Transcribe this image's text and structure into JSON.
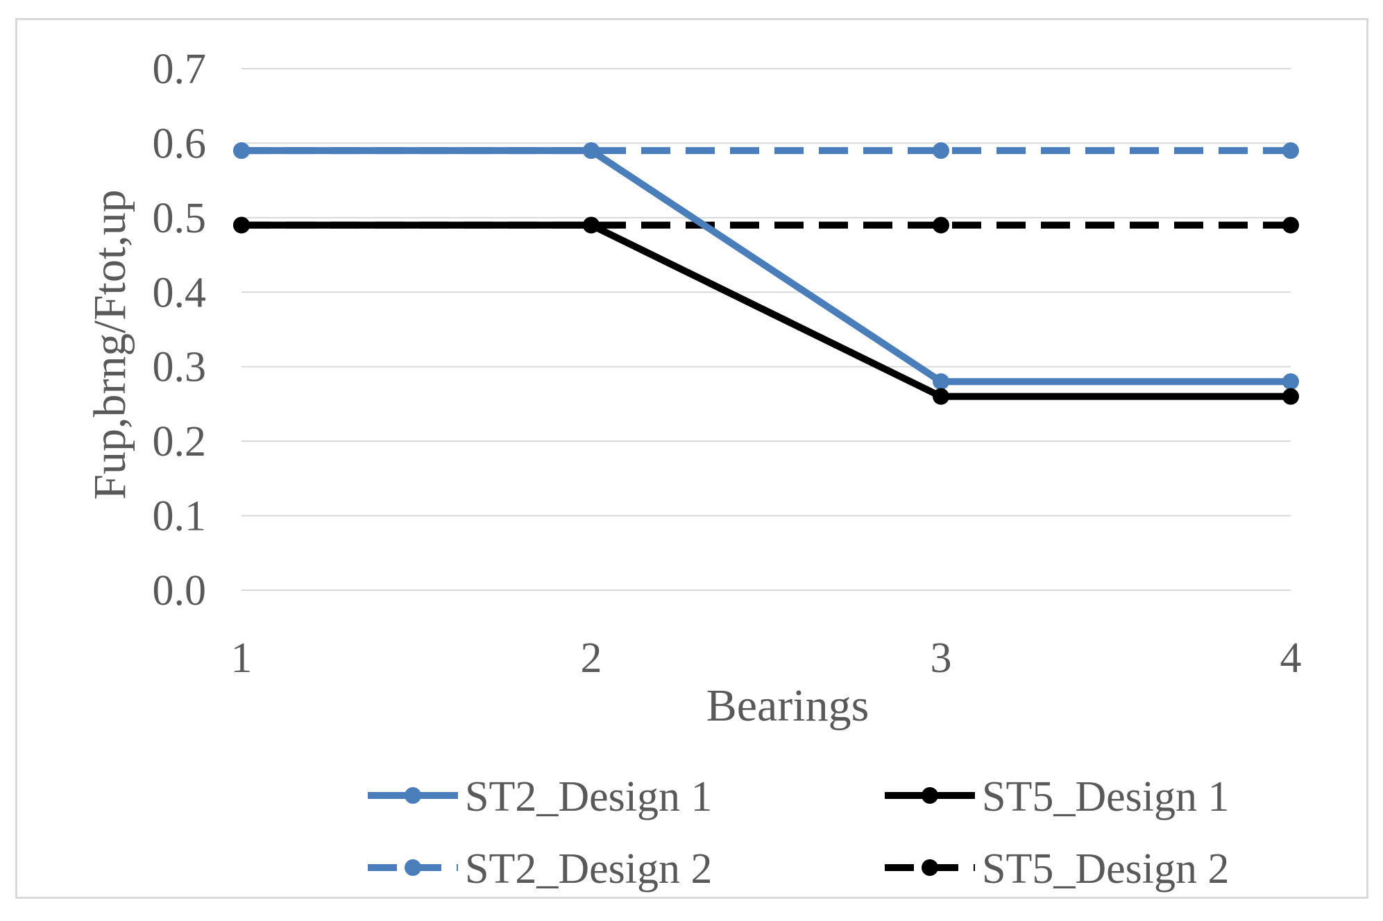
{
  "chart_data": {
    "type": "line",
    "title": "",
    "xlabel": "Bearings",
    "ylabel": "Fup,brng/Ftot,up",
    "categories": [
      "1",
      "2",
      "3",
      "4"
    ],
    "ylim": [
      0,
      0.7
    ],
    "yticks": [
      "0.0",
      "0.1",
      "0.2",
      "0.3",
      "0.4",
      "0.5",
      "0.6",
      "0.7"
    ],
    "grid": true,
    "legend_position": "bottom",
    "series": [
      {
        "name": "ST2_Design 1",
        "values": [
          0.59,
          0.59,
          0.28,
          0.28
        ],
        "color": "#4a7ebb",
        "dash": "solid"
      },
      {
        "name": "ST5_Design 1",
        "values": [
          0.49,
          0.49,
          0.26,
          0.26
        ],
        "color": "#000000",
        "dash": "solid"
      },
      {
        "name": "ST2_Design 2",
        "values": [
          0.59,
          0.59,
          0.59,
          0.59
        ],
        "color": "#4a7ebb",
        "dash": "dashed"
      },
      {
        "name": "ST5_Design 2",
        "values": [
          0.49,
          0.49,
          0.49,
          0.49
        ],
        "color": "#000000",
        "dash": "dashed"
      }
    ]
  }
}
